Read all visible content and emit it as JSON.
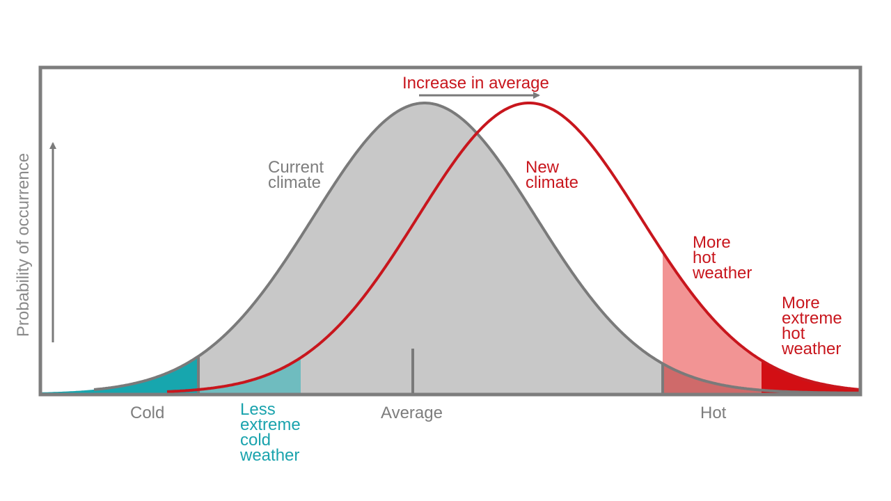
{
  "labels": {
    "title_arrow": "Increase in average",
    "current_climate": "Current\nclimate",
    "new_climate": "New\nclimate",
    "more_hot": "More\nhot\nweather",
    "more_extreme_hot": "More\nextreme\nhot\nweather",
    "less_extreme_cold": "Less\nextreme\ncold\nweather",
    "y_axis": "Probability of occurrence"
  },
  "axis": {
    "cold": "Cold",
    "average": "Average",
    "hot": "Hot"
  },
  "colors": {
    "current_curve": "#7a7a7a",
    "current_fill": "#c8c8c8",
    "new_curve": "#c8161d",
    "hot_fill": "#f29494",
    "extreme_hot_fill": "#d20f14",
    "extreme_cold_fill": "#17a6ae",
    "less_cold_fill": "#6fbcbf",
    "overlap_fill": "#cf6a6a"
  }
}
